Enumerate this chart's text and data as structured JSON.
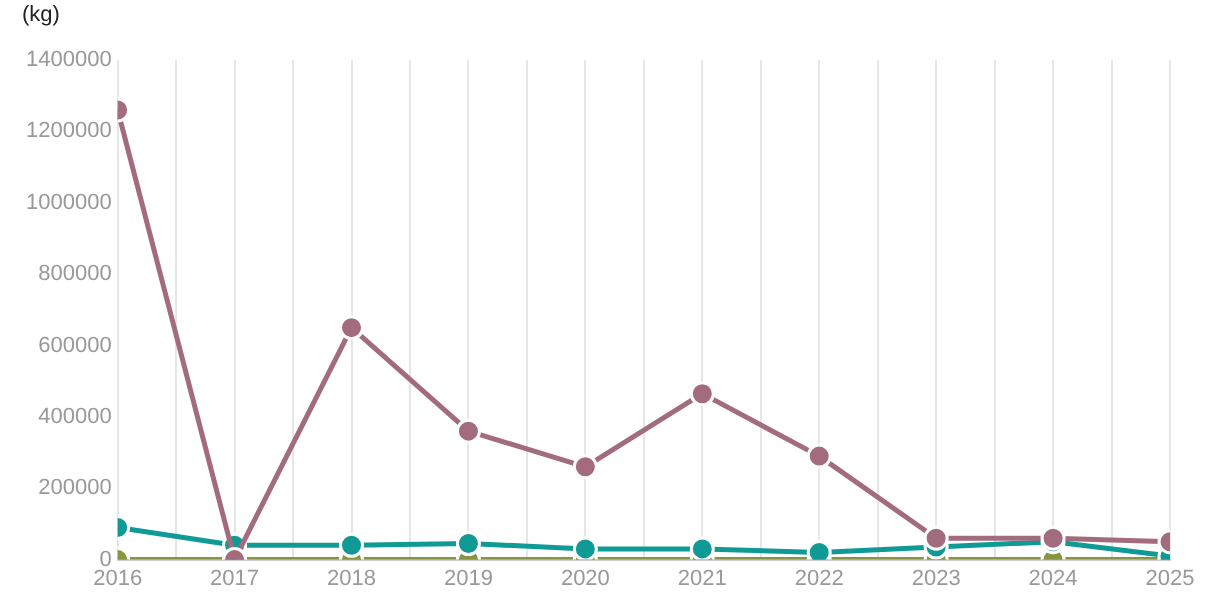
{
  "chart_data": {
    "type": "line",
    "ylabel": "(kg)",
    "x": [
      2016,
      2017,
      2018,
      2019,
      2020,
      2021,
      2022,
      2023,
      2024,
      2025
    ],
    "series": [
      {
        "color": "#a36b7e",
        "values": [
          1260000,
          0,
          650000,
          360000,
          260000,
          465000,
          290000,
          60000,
          60000,
          50000
        ]
      },
      {
        "color": "#109a96",
        "values": [
          90000,
          40000,
          40000,
          45000,
          30000,
          30000,
          20000,
          35000,
          50000,
          10000
        ]
      },
      {
        "color": "#879442",
        "values": [
          0,
          0,
          0,
          0,
          0,
          0,
          0,
          0,
          0,
          0
        ]
      }
    ],
    "xlim": [
      2016,
      2025
    ],
    "xticks": [
      2016,
      {
        "value": 2016.5,
        "label": null
      },
      2017,
      {
        "value": 2017.5,
        "label": null
      },
      2018,
      {
        "value": 2018.5,
        "label": null
      },
      2019,
      {
        "value": 2019.5,
        "label": null
      },
      2020,
      {
        "value": 2020.5,
        "label": null
      },
      2021,
      {
        "value": 2021.5,
        "label": null
      },
      2022,
      {
        "value": 2022.5,
        "label": null
      },
      2023,
      {
        "value": 2023.5,
        "label": null
      },
      2024,
      {
        "value": 2024.5,
        "label": null
      },
      2025
    ],
    "ylim": [
      0,
      1400000
    ],
    "yticks": [
      0,
      200000,
      400000,
      600000,
      800000,
      1000000,
      1200000,
      1400000
    ],
    "grid": "x",
    "legend": false,
    "marker": "circle",
    "line_style": "solid"
  }
}
